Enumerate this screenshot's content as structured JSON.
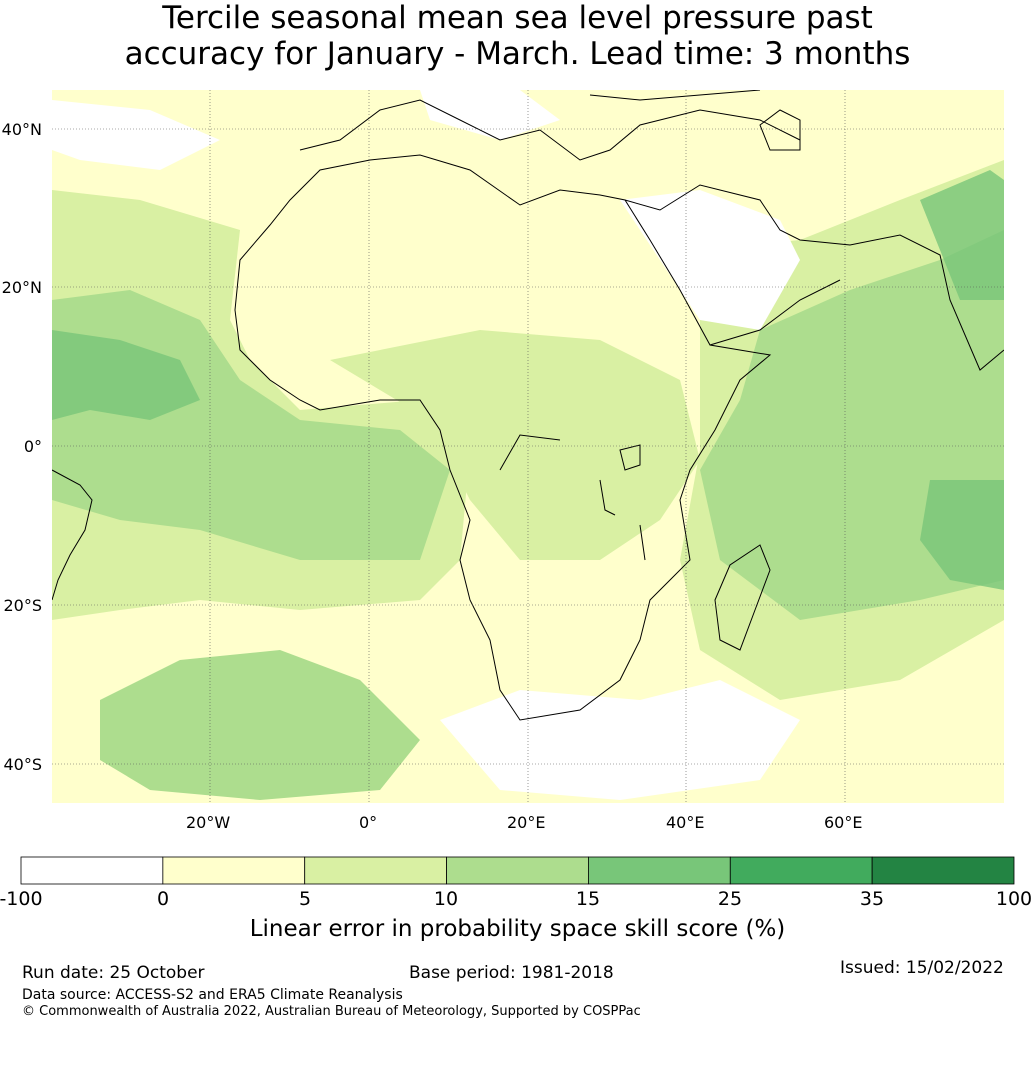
{
  "title": {
    "line1": "Tercile seasonal mean sea level pressure past",
    "line2": "accuracy for January - March. Lead time: 3 months"
  },
  "axes": {
    "lat_labels": [
      "40°N",
      "20°N",
      "0°",
      "20°S",
      "40°S"
    ],
    "lon_labels": [
      "20°W",
      "0°",
      "20°E",
      "40°E",
      "60°E"
    ]
  },
  "colorbar": {
    "ticks": [
      "-100",
      "0",
      "5",
      "10",
      "15",
      "25",
      "35",
      "100"
    ],
    "colors": [
      "#ffffff",
      "#ffffcc",
      "#d9f0a3",
      "#addd8e",
      "#78c679",
      "#41ab5d",
      "#238443"
    ],
    "title": "Linear error in probability space skill score (%)"
  },
  "footer": {
    "run_date": "Run date: 25 October",
    "base_period": "Base period: 1981-2018",
    "issued": "Issued: 15/02/2022",
    "data_source": "Data source: ACCESS-S2 and ERA5 Climate Reanalysis",
    "copyright": "© Commonwealth of Australia 2022, Australian Bureau of Meteorology, Supported by COSPPac"
  }
}
